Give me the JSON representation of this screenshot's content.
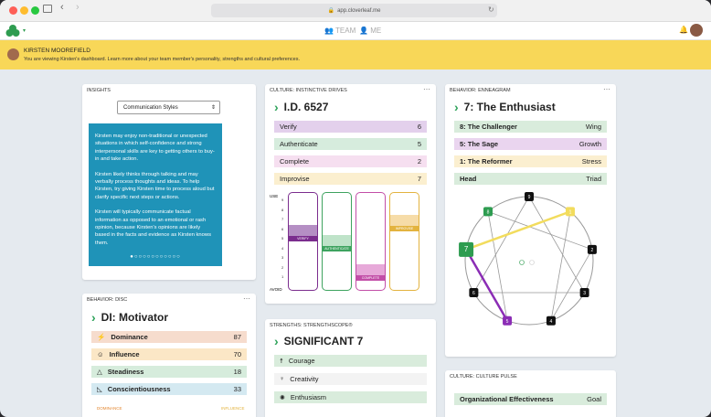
{
  "browser": {
    "url": "app.cloverleaf.me"
  },
  "appbar": {
    "team": "TEAM",
    "me": "ME"
  },
  "banner": {
    "name": "KIRSTEN MOOREFIELD",
    "message": "You are viewing Kirsten's dashboard. Learn more about your team member's personality, strengths and cultural preferences."
  },
  "insights": {
    "title": "INSIGHTS",
    "select": "Communication Styles",
    "p1": "Kirsten may enjoy non-traditional or unexpected situations in which self-confidence and strong interpersonal skills are key to getting others to buy-in and take action.",
    "p2": "Kirsten likely thinks through talking and may verbally process thoughts and ideas. To help Kirsten, try giving Kirsten time to process aloud but clarify specific next steps or actions.",
    "p3": "Kirsten will typically communicate factual information as opposed to an emotional or rash opinion, because Kirsten's opinions are likely based in the facts and evidence as Kirsten knows them."
  },
  "drives": {
    "title": "CULTURE: INSTINCTIVE DRIVES",
    "heading": "I.D. 6527",
    "rows": [
      {
        "label": "Verify",
        "value": "6",
        "color": "#e3d0ec"
      },
      {
        "label": "Authenticate",
        "value": "5",
        "color": "#d6ecdd"
      },
      {
        "label": "Complete",
        "value": "2",
        "color": "#f6dff0"
      },
      {
        "label": "Improvise",
        "value": "7",
        "color": "#fbefcf"
      }
    ],
    "bars": [
      {
        "label": "VERIFY",
        "color": "#7b2d8e",
        "fill": "#b58fc4",
        "level": 6
      },
      {
        "label": "AUTHENTICATE",
        "color": "#3ea35f",
        "fill": "#bfe3c9",
        "level": 5
      },
      {
        "label": "COMPLETE",
        "color": "#c24ea7",
        "fill": "#e7a9d9",
        "level": 2
      },
      {
        "label": "IMPROVISE",
        "color": "#e3b33f",
        "fill": "#f6dca8",
        "level": 7
      }
    ],
    "axis_top": "USE",
    "axis_bottom": "AVOID",
    "ticks": [
      "9",
      "8",
      "7",
      "6",
      "5",
      "4",
      "3",
      "2",
      "1"
    ]
  },
  "enneagram": {
    "title": "BEHAVIOR: ENNEAGRAM",
    "heading": "7: The Enthusiast",
    "rows": [
      {
        "label": "8: The Challenger",
        "tag": "Wing",
        "color": "#d9ecdc"
      },
      {
        "label": "5: The Sage",
        "tag": "Growth",
        "color": "#ead5ef"
      },
      {
        "label": "1: The Reformer",
        "tag": "Stress",
        "color": "#fbefd0"
      },
      {
        "label": "Head",
        "tag": "Triad",
        "color": "#d9ecdc"
      }
    ],
    "nodes": [
      "9",
      "1",
      "2",
      "3",
      "4",
      "5",
      "6",
      "7",
      "8"
    ]
  },
  "disc": {
    "title": "BEHAVIOR: DISC",
    "heading": "DI: Motivator",
    "rows": [
      {
        "label": "Dominance",
        "value": "87",
        "color": "#f6dccd",
        "icon": "⚡"
      },
      {
        "label": "Influence",
        "value": "70",
        "color": "#fbe7c6",
        "icon": "☺"
      },
      {
        "label": "Steadiness",
        "value": "18",
        "color": "#d6ecdc",
        "icon": "△"
      },
      {
        "label": "Conscientiousness",
        "value": "33",
        "color": "#d4e9f1",
        "icon": "◺"
      }
    ],
    "foot_left": "DOMINANCE",
    "foot_right": "INFLUENCE"
  },
  "strengths": {
    "title": "STRENGTHS: STRENGTHSCOPE®",
    "heading": "SIGNIFICANT 7",
    "rows": [
      {
        "label": "Courage",
        "color": "#d9ecdc",
        "icon": "☨"
      },
      {
        "label": "Creativity",
        "color": "#f3f3f3",
        "icon": "♀"
      },
      {
        "label": "Enthusiasm",
        "color": "#d9ecdc",
        "icon": "✺"
      }
    ]
  },
  "pulse": {
    "title": "CULTURE: CULTURE PULSE",
    "row_label": "Organizational Effectiveness",
    "row_tag": "Goal"
  }
}
